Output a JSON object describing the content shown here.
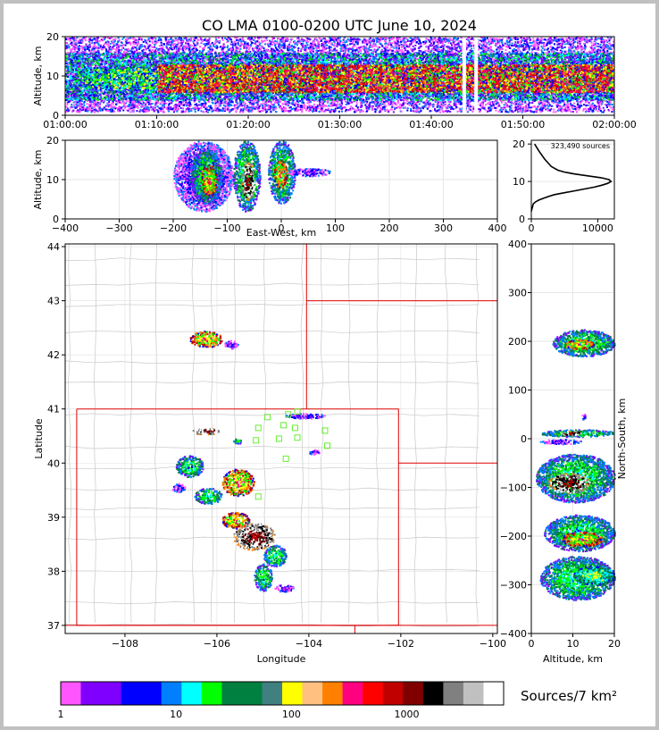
{
  "title": "CO LMA 0100-0200 UTC June 10, 2024",
  "colorbar": {
    "label": "Sources/7 km²",
    "ticks": [
      {
        "v": 1,
        "label": "1"
      },
      {
        "v": 10,
        "label": "10"
      },
      {
        "v": 100,
        "label": "100"
      },
      {
        "v": 1000,
        "label": "1000"
      }
    ],
    "colors": [
      "#ff55ff",
      "#8000ff",
      "#7f00ff",
      "#0000ff",
      "#0000ff",
      "#0080ff",
      "#00ffff",
      "#00ff00",
      "#008040",
      "#008040",
      "#408080",
      "#ffff00",
      "#ffc080",
      "#ff8000",
      "#ff0080",
      "#ff0000",
      "#c00000",
      "#800000",
      "#000000",
      "#808080",
      "#c0c0c0",
      "#ffffff"
    ]
  },
  "chart_data": [
    {
      "panel": "time-height",
      "type": "heatmap",
      "xlabel": "",
      "ylabel": "Altitude, km",
      "ylim": [
        0,
        20
      ],
      "yticks": [
        "0",
        "10",
        "20"
      ],
      "xticks": [
        "01:00:00",
        "01:10:00",
        "01:20:00",
        "01:30:00",
        "01:40:00",
        "01:50:00",
        "02:00:00"
      ],
      "bands": [
        {
          "t0": 0,
          "t1": 60,
          "z0": 1,
          "z1": 20,
          "level": "low"
        },
        {
          "t0": 0,
          "t1": 60,
          "z0": 4,
          "z1": 16,
          "level": "medium"
        },
        {
          "t0": 10,
          "t1": 60,
          "z0": 6,
          "z1": 13,
          "level": "high"
        },
        {
          "t0": 2,
          "t1": 10,
          "z0": 7,
          "z1": 12,
          "level": "medium-high"
        }
      ],
      "gaps": [
        43.5,
        44.8
      ]
    },
    {
      "panel": "east-west-altitude",
      "type": "heatmap",
      "xlabel": "East-West, km",
      "ylabel": "Altitude, km",
      "xlim": [
        -400,
        400
      ],
      "ylim": [
        0,
        20
      ],
      "xticks": [
        "−400",
        "−300",
        "−200",
        "−100",
        "0",
        "100",
        "200",
        "300",
        "400"
      ],
      "yticks": [
        "0",
        "10",
        "20"
      ],
      "cells": [
        {
          "x0": -200,
          "x1": -90,
          "z0": 2,
          "z1": 20,
          "level": "low"
        },
        {
          "x0": -170,
          "x1": -110,
          "z0": 4,
          "z1": 18,
          "level": "medium"
        },
        {
          "x0": -150,
          "x1": -120,
          "z0": 6,
          "z1": 14,
          "level": "high"
        },
        {
          "x0": -90,
          "x1": -40,
          "z0": 2,
          "z1": 20,
          "level": "medium"
        },
        {
          "x0": -75,
          "x1": -50,
          "z0": 5,
          "z1": 15,
          "level": "very-high"
        },
        {
          "x0": -25,
          "x1": 25,
          "z0": 4,
          "z1": 20,
          "level": "medium"
        },
        {
          "x0": -15,
          "x1": 10,
          "z0": 8,
          "z1": 15,
          "level": "high"
        },
        {
          "x0": 10,
          "x1": 90,
          "z0": 11,
          "z1": 13,
          "level": "low"
        }
      ]
    },
    {
      "panel": "altitude-histogram",
      "type": "line",
      "annotation": "323,490 sources",
      "xlim": [
        0,
        12500
      ],
      "ylim": [
        0,
        21
      ],
      "xticks": [
        "0",
        "10000"
      ],
      "yticks": [
        "0",
        "10",
        "20"
      ],
      "x": [
        0,
        150,
        300,
        600,
        1100,
        1800,
        2600,
        3500,
        5000,
        6500,
        8000,
        9500,
        10600,
        11500,
        12000,
        11700,
        10500,
        8500,
        6500,
        5000,
        4000,
        3000,
        2000,
        1200,
        500
      ],
      "y": [
        2,
        3,
        4,
        4.5,
        5,
        5.5,
        6,
        6.5,
        7,
        7.5,
        8,
        8.5,
        9,
        9.5,
        10,
        10.5,
        11,
        11.5,
        12,
        12.5,
        13,
        14,
        16,
        18,
        20
      ]
    },
    {
      "panel": "plan-view",
      "type": "heatmap",
      "xlabel": "Longitude",
      "ylabel": "Latitude",
      "xlim": [
        -109.3,
        -99.9
      ],
      "ylim": [
        36.85,
        44.05
      ],
      "xticks": [
        "−108",
        "−106",
        "−104",
        "−102",
        "−100"
      ],
      "yticks": [
        "37",
        "38",
        "39",
        "40",
        "41",
        "42",
        "43",
        "44"
      ],
      "cells": [
        {
          "lon": -106.25,
          "lat": 42.3,
          "rx": 0.35,
          "ry": 0.15,
          "level": "high"
        },
        {
          "lon": -105.7,
          "lat": 42.2,
          "rx": 0.15,
          "ry": 0.08,
          "level": "low"
        },
        {
          "lon": -106.25,
          "lat": 40.6,
          "rx": 0.3,
          "ry": 0.06,
          "level": "very-high"
        },
        {
          "lon": -105.55,
          "lat": 40.42,
          "rx": 0.1,
          "ry": 0.05,
          "level": "medium"
        },
        {
          "lon": -106.6,
          "lat": 39.95,
          "rx": 0.3,
          "ry": 0.2,
          "level": "medium"
        },
        {
          "lon": -105.55,
          "lat": 39.65,
          "rx": 0.35,
          "ry": 0.25,
          "level": "high"
        },
        {
          "lon": -106.2,
          "lat": 39.4,
          "rx": 0.3,
          "ry": 0.15,
          "level": "medium"
        },
        {
          "lon": -106.85,
          "lat": 39.55,
          "rx": 0.15,
          "ry": 0.08,
          "level": "low"
        },
        {
          "lon": -105.6,
          "lat": 38.95,
          "rx": 0.3,
          "ry": 0.15,
          "level": "high"
        },
        {
          "lon": -105.2,
          "lat": 38.65,
          "rx": 0.45,
          "ry": 0.25,
          "level": "very-high"
        },
        {
          "lon": -104.75,
          "lat": 38.3,
          "rx": 0.25,
          "ry": 0.2,
          "level": "medium"
        },
        {
          "lon": -105.0,
          "lat": 37.9,
          "rx": 0.2,
          "ry": 0.25,
          "level": "medium"
        },
        {
          "lon": -104.55,
          "lat": 37.7,
          "rx": 0.2,
          "ry": 0.07,
          "level": "low"
        },
        {
          "lon": -103.9,
          "lat": 40.22,
          "rx": 0.12,
          "ry": 0.05,
          "level": "low"
        },
        {
          "lon": -104.1,
          "lat": 40.88,
          "rx": 0.45,
          "ry": 0.05,
          "level": "low"
        }
      ],
      "stations": [
        [
          -104.25,
          40.95
        ],
        [
          -104.45,
          40.9
        ],
        [
          -104.9,
          40.85
        ],
        [
          -104.55,
          40.7
        ],
        [
          -104.3,
          40.65
        ],
        [
          -103.65,
          40.6
        ],
        [
          -105.1,
          40.65
        ],
        [
          -105.15,
          40.42
        ],
        [
          -104.65,
          40.45
        ],
        [
          -104.25,
          40.47
        ],
        [
          -103.6,
          40.32
        ],
        [
          -104.5,
          40.08
        ],
        [
          -105.1,
          39.38
        ]
      ],
      "red_lines": [
        [
          [
            -109.05,
            41.0
          ],
          [
            -102.05,
            41.0
          ],
          [
            -102.05,
            37.0
          ],
          [
            -109.05,
            37.0
          ],
          [
            -109.05,
            41.0
          ]
        ],
        [
          [
            -104.05,
            41.0
          ],
          [
            -104.05,
            44.05
          ]
        ],
        [
          [
            -104.05,
            43.0
          ],
          [
            -99.9,
            43.0
          ]
        ],
        [
          [
            -102.05,
            40.0
          ],
          [
            -99.9,
            40.0
          ]
        ],
        [
          [
            -103.0,
            37.0
          ],
          [
            -103.0,
            36.85
          ]
        ],
        [
          [
            -109.3,
            37.0
          ],
          [
            -99.9,
            37.0
          ]
        ]
      ]
    },
    {
      "panel": "north-south-altitude",
      "type": "heatmap",
      "xlabel": "Altitude, km",
      "ylabel": "North-South, km",
      "xlim": [
        0,
        20
      ],
      "ylim": [
        -400,
        400
      ],
      "xticks": [
        "0",
        "10",
        "20"
      ],
      "yticks": [
        "−400",
        "−300",
        "−200",
        "−100",
        "0",
        "100",
        "200",
        "300",
        "400"
      ],
      "cells": [
        {
          "z0": 5,
          "z1": 20,
          "y0": 170,
          "y1": 225,
          "level": "medium"
        },
        {
          "z0": 8,
          "z1": 15,
          "y0": 185,
          "y1": 205,
          "level": "high"
        },
        {
          "z0": 12,
          "z1": 13,
          "y0": 40,
          "y1": 55,
          "level": "low"
        },
        {
          "z0": 2,
          "z1": 20,
          "y0": 5,
          "y1": 20,
          "level": "medium"
        },
        {
          "z0": 7,
          "z1": 12,
          "y0": 8,
          "y1": 17,
          "level": "very-high"
        },
        {
          "z0": 2,
          "z1": 12,
          "y0": -10,
          "y1": 0,
          "level": "low"
        },
        {
          "z0": 1,
          "z1": 20,
          "y0": -130,
          "y1": -30,
          "level": "medium"
        },
        {
          "z0": 4,
          "z1": 14,
          "y0": -110,
          "y1": -70,
          "level": "very-high"
        },
        {
          "z0": 3,
          "z1": 20,
          "y0": -230,
          "y1": -155,
          "level": "medium"
        },
        {
          "z0": 7,
          "z1": 17,
          "y0": -220,
          "y1": -190,
          "level": "high"
        },
        {
          "z0": 2,
          "z1": 20,
          "y0": -330,
          "y1": -240,
          "level": "medium"
        },
        {
          "z0": 10,
          "z1": 20,
          "y0": -300,
          "y1": -260,
          "level": "medium-high"
        }
      ]
    }
  ]
}
